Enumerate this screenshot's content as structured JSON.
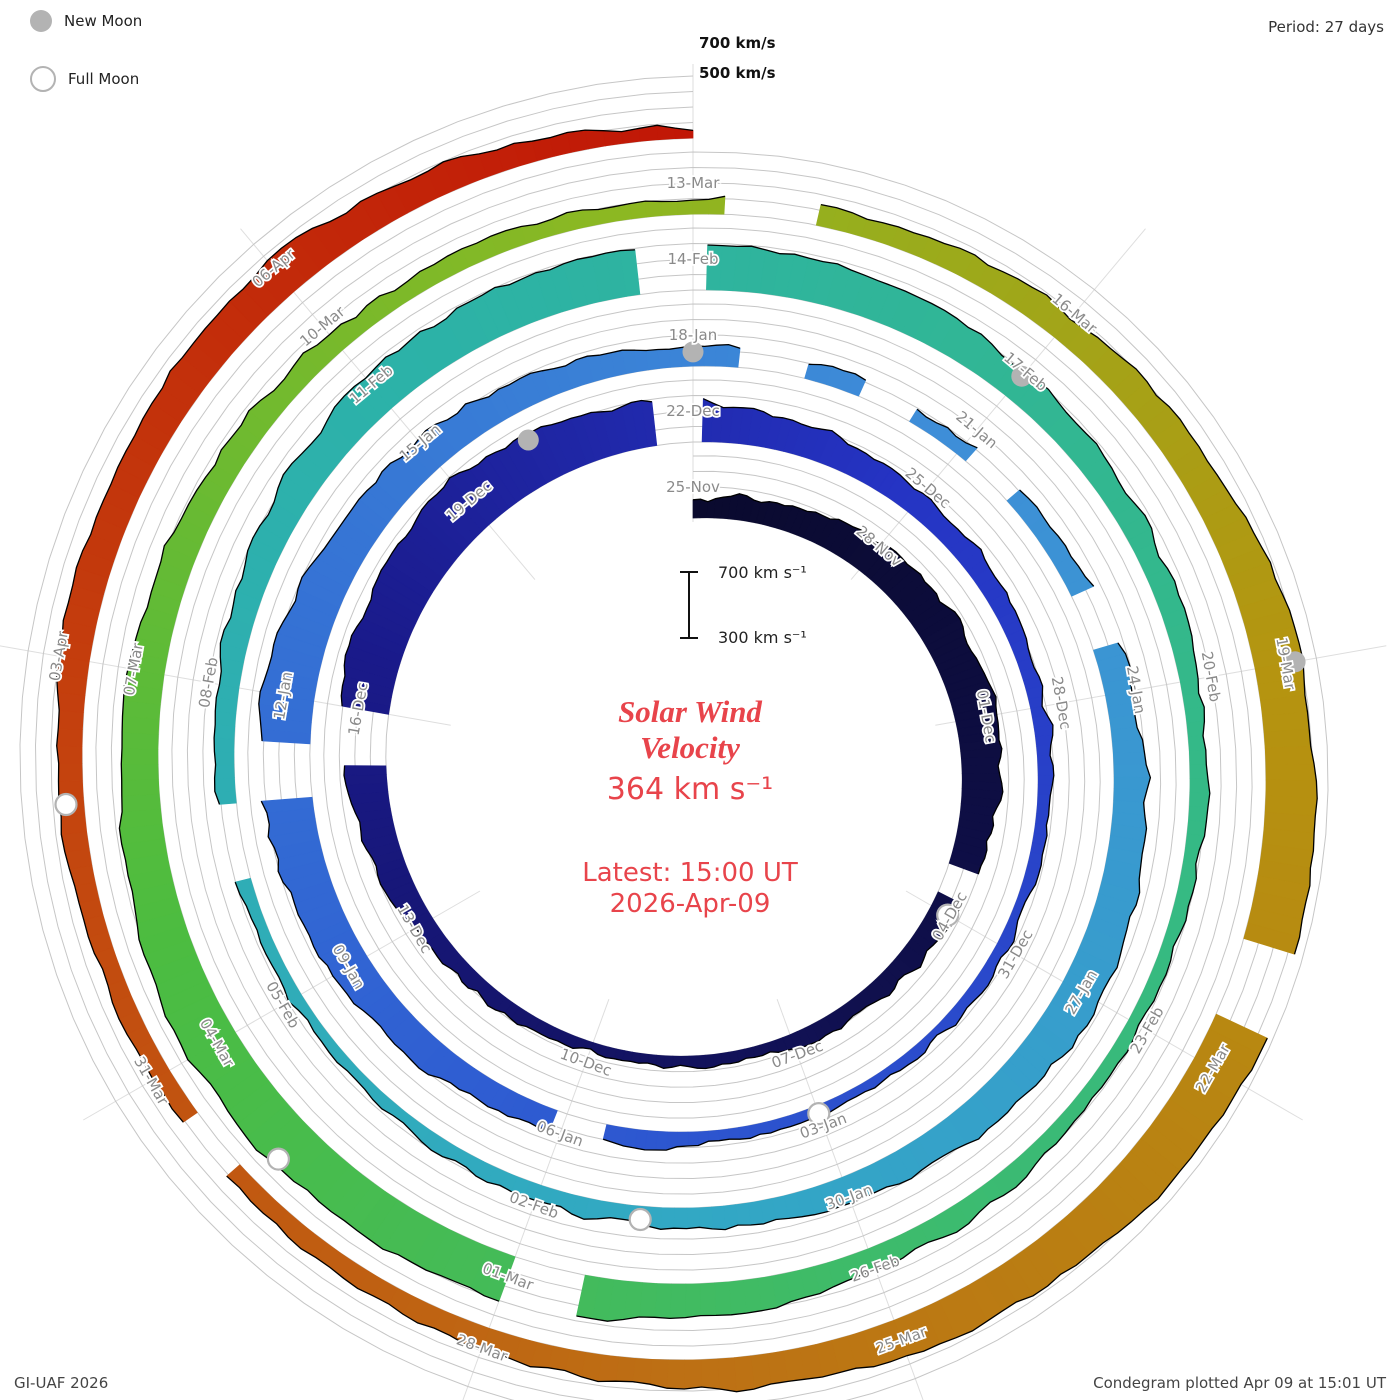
{
  "header": {
    "period": "Period: 27 days"
  },
  "legend": {
    "new_moon": "New Moon",
    "full_moon": "Full Moon"
  },
  "annotations": {
    "scale_high": "700 km/s",
    "scale_low": "500 km/s"
  },
  "center": {
    "scalebar_top": "700 km s⁻¹",
    "scalebar_bottom": "300 km s⁻¹",
    "title_line1": "Solar Wind",
    "title_line2": "Velocity",
    "value": "364 km s⁻¹",
    "latest": "Latest: 15:00 UT",
    "date": "2026-Apr-09"
  },
  "footer": {
    "left": "GI-UAF 2026",
    "right": "Condegram plotted Apr 09 at 15:01 UT"
  },
  "chart_data": {
    "type": "area",
    "variant": "condegram-spiral",
    "title": "Solar Wind Velocity",
    "units": "km/s",
    "period_days": 27,
    "start_label": "25-Nov",
    "end_label": "2026-Apr-09",
    "current": {
      "velocity_kms": 364,
      "time": "15:00 UT",
      "date": "2026-Apr-09"
    },
    "velocity_scale": {
      "min": 300,
      "max": 700,
      "gridlines": [
        300,
        400,
        500,
        600,
        700
      ]
    },
    "series": {
      "day_offsets": [
        0,
        3,
        6,
        9,
        12,
        15,
        18,
        21,
        24,
        27,
        30,
        33,
        36,
        39,
        42,
        45,
        48,
        51,
        54,
        57,
        60,
        63,
        66,
        69,
        72,
        75,
        78,
        81,
        84,
        87,
        90,
        93,
        96,
        99,
        102,
        105,
        108,
        111,
        114,
        117,
        120,
        123,
        126,
        129,
        132,
        135
      ],
      "dates": [
        "25-Nov",
        "28-Nov",
        "01-Dec",
        "04-Dec",
        "07-Dec",
        "10-Dec",
        "13-Dec",
        "16-Dec",
        "19-Dec",
        "22-Dec",
        "25-Dec",
        "28-Dec",
        "31-Dec",
        "03-Jan",
        "06-Jan",
        "09-Jan",
        "12-Jan",
        "15-Jan",
        "18-Jan",
        "21-Jan",
        "24-Jan",
        "27-Jan",
        "30-Jan",
        "02-Feb",
        "05-Feb",
        "08-Feb",
        "11-Feb",
        "14-Feb",
        "17-Feb",
        "20-Feb",
        "23-Feb",
        "26-Feb",
        "01-Mar",
        "04-Mar",
        "07-Mar",
        "10-Mar",
        "13-Mar",
        "16-Mar",
        "19-Mar",
        "22-Mar",
        "25-Mar",
        "28-Mar",
        "31-Mar",
        "03-Apr",
        "06-Apr"
      ],
      "velocity_kms": [
        420,
        520,
        580,
        460,
        380,
        360,
        430,
        620,
        680,
        560,
        450,
        400,
        370,
        360,
        420,
        550,
        640,
        520,
        430,
        390,
        480,
        580,
        470,
        400,
        370,
        440,
        560,
        610,
        500,
        420,
        380,
        450,
        590,
        640,
        520,
        430,
        390,
        470,
        600,
        650,
        540,
        440,
        400,
        480,
        560,
        364
      ]
    },
    "gaps_days": [
      [
        8.3,
        8.7
      ],
      [
        20.4,
        20.9
      ],
      [
        26.6,
        27.0
      ],
      [
        41.6,
        42.1
      ],
      [
        47.0,
        47.4
      ],
      [
        54.6,
        55.1
      ],
      [
        55.9,
        56.3
      ],
      [
        57.2,
        57.7
      ],
      [
        59.0,
        59.5
      ],
      [
        73.3,
        73.8
      ],
      [
        80.6,
        81.1
      ],
      [
        95.4,
        95.9
      ],
      [
        108.3,
        108.9
      ],
      [
        116.1,
        116.6
      ],
      [
        125.2,
        125.6
      ]
    ],
    "moons": {
      "new": [
        {
          "date": "2025-12-20",
          "d": 25
        },
        {
          "date": "2026-01-18",
          "d": 54
        },
        {
          "date": "2026-02-17",
          "d": 84
        },
        {
          "date": "2026-03-19",
          "d": 114
        }
      ],
      "full": [
        {
          "date": "2025-12-04",
          "d": 9
        },
        {
          "date": "2026-01-03",
          "d": 39
        },
        {
          "date": "2026-02-01",
          "d": 68
        },
        {
          "date": "2026-03-03",
          "d": 98
        },
        {
          "date": "2026-04-02",
          "d": 128
        }
      ]
    },
    "colors": {
      "stops": [
        {
          "t": 0.0,
          "c": "#0a0a2e"
        },
        {
          "t": 0.08,
          "c": "#10104e"
        },
        {
          "t": 0.16,
          "c": "#1a1a8a"
        },
        {
          "t": 0.22,
          "c": "#2534c4"
        },
        {
          "t": 0.32,
          "c": "#2f5ed2"
        },
        {
          "t": 0.42,
          "c": "#3e8ed8"
        },
        {
          "t": 0.5,
          "c": "#32a8c4"
        },
        {
          "t": 0.58,
          "c": "#2cb2a8"
        },
        {
          "t": 0.66,
          "c": "#36ba82"
        },
        {
          "t": 0.74,
          "c": "#4cbc40"
        },
        {
          "t": 0.795,
          "c": "#8cb822"
        },
        {
          "t": 0.845,
          "c": "#b59410"
        },
        {
          "t": 0.9,
          "c": "#bd7014"
        },
        {
          "t": 0.95,
          "c": "#c4420e"
        },
        {
          "t": 1.0,
          "c": "#c11606"
        }
      ],
      "edge": "#000000",
      "grid": "#c6c6c6",
      "label": "#8a8a8a",
      "moon": "#b3b3b3",
      "accent_red": "#e8444b"
    }
  }
}
